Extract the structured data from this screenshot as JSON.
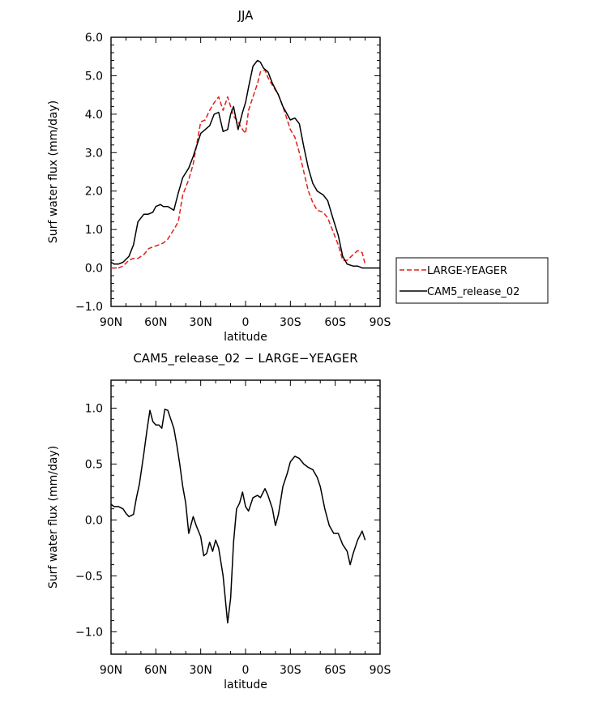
{
  "chart_data": [
    {
      "type": "line",
      "title": "JJA",
      "xlabel": "latitude",
      "ylabel": "Surf water flux (mm/day)",
      "xlim": [
        90,
        -90
      ],
      "ylim": [
        -1.0,
        6.0
      ],
      "xticks": [
        90,
        60,
        30,
        0,
        -30,
        -60,
        -90
      ],
      "xtick_labels": [
        "90N",
        "60N",
        "30N",
        "0",
        "30S",
        "60S",
        "90S"
      ],
      "yticks": [
        -1.0,
        0.0,
        1.0,
        2.0,
        3.0,
        4.0,
        5.0,
        6.0
      ],
      "ytick_labels": [
        "−1.0",
        "0.0",
        "1.0",
        "2.0",
        "3.0",
        "4.0",
        "5.0",
        "6.0"
      ],
      "legend": "right",
      "series": [
        {
          "name": "LARGE-YEAGER",
          "color": "#e0201b",
          "dash": "dashed",
          "x": [
            90,
            85,
            82,
            78,
            75,
            72,
            68,
            65,
            62,
            58,
            55,
            52,
            48,
            45,
            42,
            38,
            35,
            30,
            27,
            24,
            21,
            18,
            15,
            12,
            10,
            8,
            5,
            2,
            0,
            -2,
            -5,
            -8,
            -10,
            -13,
            -15,
            -18,
            -22,
            -25,
            -30,
            -33,
            -36,
            -39,
            -42,
            -45,
            -48,
            -52,
            -55,
            -58,
            -62,
            -65,
            -68,
            -72,
            -75,
            -78,
            -80
          ],
          "values": [
            0.0,
            0.0,
            0.05,
            0.2,
            0.25,
            0.25,
            0.35,
            0.5,
            0.55,
            0.6,
            0.65,
            0.75,
            1.0,
            1.2,
            1.9,
            2.3,
            2.7,
            3.8,
            3.85,
            4.1,
            4.3,
            4.45,
            4.1,
            4.45,
            4.2,
            3.95,
            3.8,
            3.6,
            3.5,
            4.1,
            4.45,
            4.8,
            5.1,
            5.15,
            4.95,
            4.75,
            4.5,
            4.2,
            3.6,
            3.4,
            3.0,
            2.5,
            2.0,
            1.7,
            1.5,
            1.45,
            1.3,
            1.0,
            0.6,
            0.2,
            0.2,
            0.35,
            0.45,
            0.4,
            0.1
          ]
        },
        {
          "name": "CAM5_release_02",
          "color": "#000000",
          "dash": "solid",
          "x": [
            90,
            88,
            85,
            82,
            78,
            75,
            72,
            68,
            65,
            62,
            60,
            57,
            55,
            52,
            48,
            45,
            42,
            38,
            35,
            30,
            27,
            24,
            21,
            18,
            15,
            12,
            10,
            8,
            5,
            2,
            0,
            -2,
            -5,
            -8,
            -10,
            -12,
            -15,
            -18,
            -22,
            -25,
            -30,
            -33,
            -36,
            -39,
            -42,
            -45,
            -48,
            -52,
            -55,
            -58,
            -62,
            -65,
            -68,
            -72,
            -75,
            -78,
            -80,
            -82,
            -86,
            -90
          ],
          "values": [
            0.15,
            0.1,
            0.1,
            0.15,
            0.3,
            0.6,
            1.2,
            1.4,
            1.4,
            1.45,
            1.6,
            1.65,
            1.6,
            1.6,
            1.5,
            1.95,
            2.35,
            2.6,
            2.9,
            3.5,
            3.6,
            3.7,
            4.0,
            4.05,
            3.55,
            3.6,
            4.0,
            4.2,
            3.6,
            4.05,
            4.3,
            4.7,
            5.25,
            5.4,
            5.35,
            5.2,
            5.1,
            4.8,
            4.5,
            4.2,
            3.85,
            3.9,
            3.75,
            3.15,
            2.6,
            2.2,
            2.0,
            1.9,
            1.75,
            1.35,
            0.85,
            0.3,
            0.1,
            0.05,
            0.05,
            0.0,
            0.0,
            0.0,
            0.0,
            0.0
          ]
        }
      ]
    },
    {
      "type": "line",
      "title": "CAM5_release_02 − LARGE−YEAGER",
      "xlabel": "latitude",
      "ylabel": "Surf water flux (mm/day)",
      "xlim": [
        90,
        -90
      ],
      "ylim": [
        -1.2,
        1.25
      ],
      "xticks": [
        90,
        60,
        30,
        0,
        -30,
        -60,
        -90
      ],
      "xtick_labels": [
        "90N",
        "60N",
        "30N",
        "0",
        "30S",
        "60S",
        "90S"
      ],
      "yticks": [
        -1.0,
        -0.5,
        0.0,
        0.5,
        1.0
      ],
      "ytick_labels": [
        "−1.0",
        "−0.5",
        "0.0",
        "0.5",
        "1.0"
      ],
      "series": [
        {
          "name": "",
          "color": "#000000",
          "dash": "solid",
          "x": [
            90,
            88,
            85,
            82,
            80,
            78,
            75,
            73,
            71,
            68,
            66,
            64,
            62,
            60,
            58,
            56,
            54,
            52,
            50,
            48,
            46,
            44,
            42,
            40,
            38,
            35,
            33,
            30,
            28,
            26,
            24,
            22,
            20,
            18,
            15,
            12,
            10,
            8,
            6,
            4,
            2,
            0,
            -2,
            -5,
            -8,
            -10,
            -13,
            -15,
            -18,
            -20,
            -22,
            -25,
            -28,
            -30,
            -33,
            -36,
            -39,
            -42,
            -45,
            -48,
            -50,
            -53,
            -56,
            -59,
            -62,
            -65,
            -68,
            -70,
            -72,
            -75,
            -78,
            -80
          ],
          "values": [
            0.14,
            0.12,
            0.12,
            0.1,
            0.06,
            0.03,
            0.05,
            0.2,
            0.32,
            0.6,
            0.8,
            0.98,
            0.88,
            0.85,
            0.85,
            0.82,
            0.99,
            0.98,
            0.9,
            0.82,
            0.67,
            0.5,
            0.3,
            0.15,
            -0.12,
            0.03,
            -0.05,
            -0.15,
            -0.32,
            -0.3,
            -0.2,
            -0.28,
            -0.18,
            -0.25,
            -0.5,
            -0.92,
            -0.7,
            -0.2,
            0.1,
            0.15,
            0.25,
            0.12,
            0.08,
            0.2,
            0.22,
            0.2,
            0.28,
            0.22,
            0.1,
            -0.05,
            0.05,
            0.3,
            0.42,
            0.52,
            0.57,
            0.55,
            0.5,
            0.47,
            0.45,
            0.38,
            0.3,
            0.1,
            -0.05,
            -0.12,
            -0.12,
            -0.22,
            -0.28,
            -0.4,
            -0.3,
            -0.18,
            -0.1,
            -0.18
          ]
        }
      ]
    }
  ]
}
